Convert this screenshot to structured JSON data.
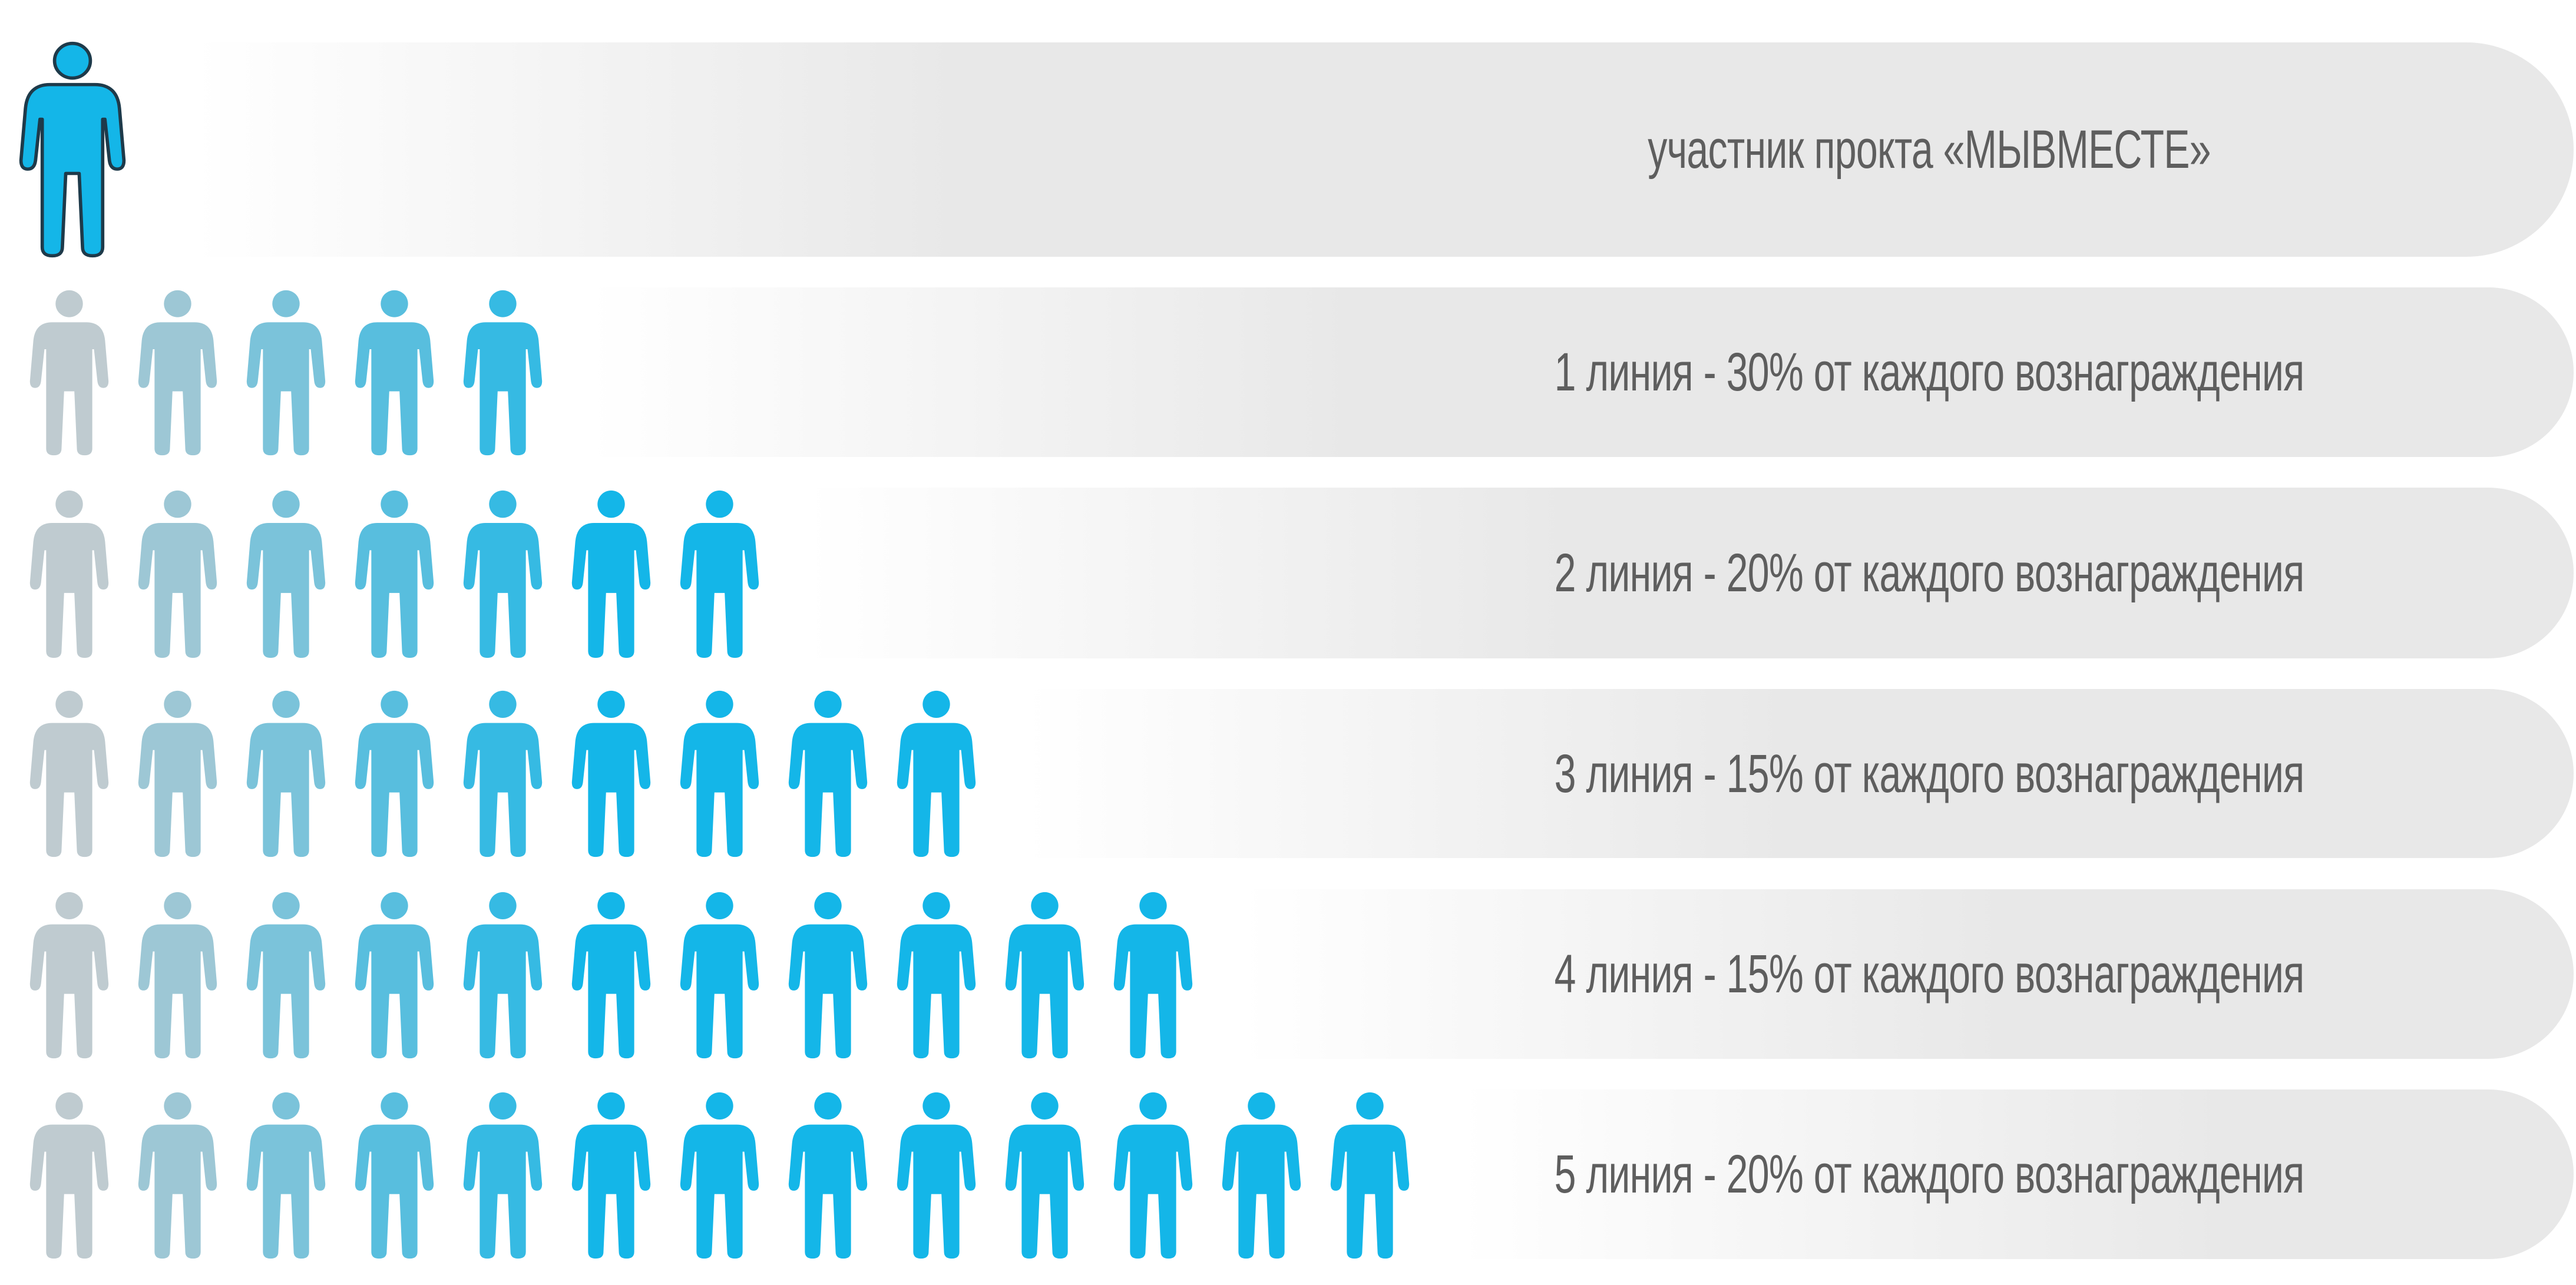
{
  "rows": [
    {
      "label": "участник прокта «МЫВМЕСТЕ»",
      "people": 1,
      "highlighted": true
    },
    {
      "label": "1 линия - 30% от каждого вознаграждения",
      "people": 5
    },
    {
      "label": "2 линия - 20% от каждого вознаграждения",
      "people": 7
    },
    {
      "label": "3 линия - 15% от каждого вознаграждения",
      "people": 9
    },
    {
      "label": "4 линия - 15% от каждого вознаграждения",
      "people": 11
    },
    {
      "label": "5 линия - 20% от каждого вознаграждения",
      "people": 13
    }
  ],
  "colors": {
    "band": "#e8e8e8",
    "text": "#5e5e5e",
    "person_gray": "#bfcbd0",
    "person_blue": "#14b6e8",
    "person_outline": "#1e3a4a"
  },
  "icon": "person-icon"
}
